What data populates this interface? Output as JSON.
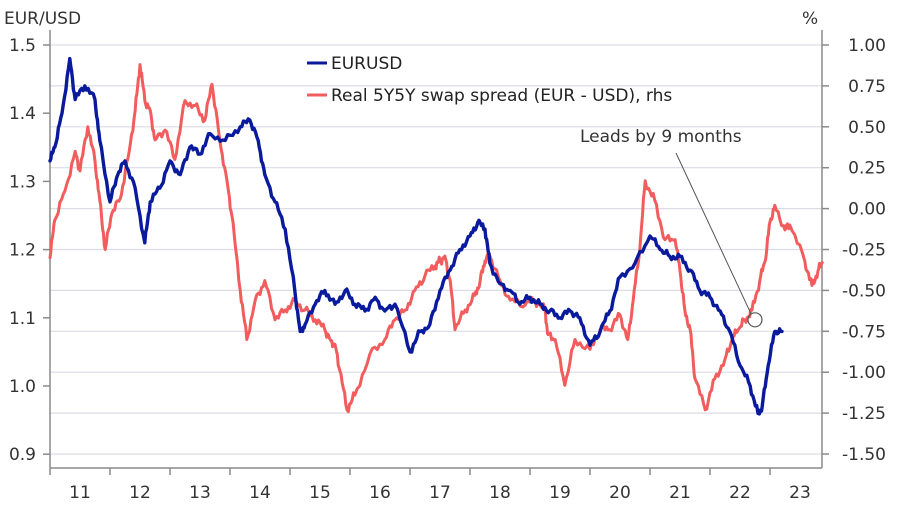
{
  "chart_data": {
    "type": "line",
    "title": "",
    "left_axis": {
      "label": "EUR/USD",
      "ylim": [
        0.88,
        1.5
      ],
      "ticks": [
        1.5,
        1.4,
        1.3,
        1.2,
        1.1,
        1.0,
        0.9
      ],
      "tick_labels": [
        "1.5",
        "1.4",
        "1.3",
        "1.2",
        "1.1",
        "1.0",
        "0.9"
      ]
    },
    "right_axis": {
      "label": "%",
      "ylim": [
        -1.55,
        1.0
      ],
      "ticks": [
        1.0,
        0.75,
        0.5,
        0.25,
        0.0,
        -0.25,
        -0.5,
        -0.75,
        -1.0,
        -1.25,
        -1.5
      ],
      "tick_labels": [
        "1.00",
        "0.75",
        "0.50",
        "0.25",
        "0.00",
        "-0.25",
        "-0.50",
        "-0.75",
        "-1.00",
        "-1.25",
        "-1.50"
      ]
    },
    "x_axis": {
      "xlim": [
        2011,
        2023.87
      ],
      "ticks": [
        2011,
        2012,
        2013,
        2014,
        2015,
        2016,
        2017,
        2018,
        2019,
        2020,
        2021,
        2022,
        2023,
        2024
      ],
      "tick_labels": [
        "11",
        "12",
        "13",
        "14",
        "15",
        "16",
        "17",
        "18",
        "19",
        "20",
        "21",
        "22",
        "23"
      ]
    },
    "grid": "horizontal",
    "legend_position": "top-center",
    "series": [
      {
        "name": "EURUSD",
        "axis": "left",
        "color": "#0a1a9c",
        "x": [
          2011.0,
          2011.08,
          2011.2,
          2011.33,
          2011.42,
          2011.58,
          2011.75,
          2011.83,
          2012.0,
          2012.13,
          2012.25,
          2012.42,
          2012.58,
          2012.67,
          2012.83,
          2013.0,
          2013.17,
          2013.33,
          2013.5,
          2013.67,
          2013.92,
          2014.17,
          2014.33,
          2014.47,
          2014.58,
          2014.75,
          2014.92,
          2015.08,
          2015.17,
          2015.25,
          2015.42,
          2015.58,
          2015.75,
          2015.92,
          2016.08,
          2016.25,
          2016.42,
          2016.58,
          2016.75,
          2017.0,
          2017.17,
          2017.33,
          2017.5,
          2017.67,
          2017.83,
          2018.0,
          2018.13,
          2018.25,
          2018.33,
          2018.5,
          2018.67,
          2018.83,
          2019.0,
          2019.17,
          2019.33,
          2019.5,
          2019.67,
          2019.83,
          2020.0,
          2020.17,
          2020.33,
          2020.5,
          2020.75,
          2021.0,
          2021.17,
          2021.33,
          2021.5,
          2021.67,
          2021.83,
          2022.0,
          2022.17,
          2022.33,
          2022.5,
          2022.67,
          2022.8,
          2022.87,
          2022.97,
          2023.08,
          2023.2
        ],
        "values": [
          1.33,
          1.35,
          1.4,
          1.48,
          1.42,
          1.44,
          1.42,
          1.36,
          1.27,
          1.31,
          1.33,
          1.29,
          1.21,
          1.27,
          1.29,
          1.33,
          1.31,
          1.35,
          1.34,
          1.37,
          1.36,
          1.38,
          1.39,
          1.36,
          1.31,
          1.27,
          1.23,
          1.14,
          1.08,
          1.09,
          1.12,
          1.14,
          1.12,
          1.14,
          1.12,
          1.11,
          1.13,
          1.11,
          1.12,
          1.05,
          1.08,
          1.09,
          1.14,
          1.17,
          1.2,
          1.22,
          1.24,
          1.23,
          1.18,
          1.15,
          1.14,
          1.12,
          1.13,
          1.12,
          1.11,
          1.1,
          1.11,
          1.1,
          1.06,
          1.08,
          1.11,
          1.16,
          1.18,
          1.22,
          1.2,
          1.19,
          1.19,
          1.17,
          1.14,
          1.13,
          1.11,
          1.08,
          1.03,
          1.0,
          0.96,
          0.97,
          1.03,
          1.08,
          1.08
        ]
      },
      {
        "name": "Real 5Y5Y swap spread (EUR - USD), rhs",
        "axis": "right",
        "color": "#f25c5c",
        "x": [
          2011.0,
          2011.08,
          2011.25,
          2011.42,
          2011.5,
          2011.63,
          2011.75,
          2011.83,
          2011.92,
          2012.03,
          2012.17,
          2012.3,
          2012.42,
          2012.5,
          2012.58,
          2012.67,
          2012.75,
          2012.92,
          2013.08,
          2013.25,
          2013.42,
          2013.58,
          2013.7,
          2013.83,
          2013.95,
          2014.03,
          2014.17,
          2014.28,
          2014.42,
          2014.58,
          2014.75,
          2014.92,
          2015.08,
          2015.25,
          2015.42,
          2015.58,
          2015.67,
          2015.75,
          2015.83,
          2015.95,
          2016.08,
          2016.33,
          2016.58,
          2016.75,
          2016.92,
          2017.08,
          2017.25,
          2017.42,
          2017.5,
          2017.58,
          2017.67,
          2017.75,
          2017.92,
          2018.08,
          2018.17,
          2018.25,
          2018.33,
          2018.5,
          2018.67,
          2018.92,
          2019.08,
          2019.25,
          2019.3,
          2019.42,
          2019.58,
          2019.75,
          2020.0,
          2020.17,
          2020.33,
          2020.5,
          2020.63,
          2020.72,
          2020.83,
          2020.92,
          2021.08,
          2021.25,
          2021.42,
          2021.5,
          2021.58,
          2021.67,
          2021.75,
          2021.92,
          2022.08,
          2022.25,
          2022.37,
          2022.47,
          2022.58,
          2022.7,
          2022.83,
          2022.92,
          2023.0,
          2023.08,
          2023.25,
          2023.33,
          2023.58,
          2023.7,
          2023.8,
          2023.87
        ],
        "values": [
          -0.3,
          -0.07,
          0.11,
          0.35,
          0.23,
          0.5,
          0.29,
          0.05,
          -0.25,
          -0.03,
          0.06,
          0.31,
          0.6,
          0.88,
          0.66,
          0.6,
          0.42,
          0.48,
          0.3,
          0.66,
          0.63,
          0.54,
          0.76,
          0.42,
          0.17,
          -0.04,
          -0.5,
          -0.8,
          -0.56,
          -0.44,
          -0.68,
          -0.62,
          -0.56,
          -0.62,
          -0.68,
          -0.74,
          -0.8,
          -0.83,
          -0.99,
          -1.23,
          -1.14,
          -0.89,
          -0.8,
          -0.68,
          -0.62,
          -0.5,
          -0.41,
          -0.35,
          -0.32,
          -0.29,
          -0.44,
          -0.74,
          -0.62,
          -0.53,
          -0.44,
          -0.32,
          -0.29,
          -0.44,
          -0.56,
          -0.59,
          -0.56,
          -0.62,
          -0.77,
          -0.8,
          -1.08,
          -0.8,
          -0.86,
          -0.74,
          -0.74,
          -0.65,
          -0.8,
          -0.56,
          -0.25,
          0.17,
          0.05,
          -0.19,
          -0.19,
          -0.38,
          -0.62,
          -0.74,
          -1.04,
          -1.23,
          -1.04,
          -0.92,
          -0.8,
          -0.74,
          -0.68,
          -0.62,
          -0.44,
          -0.32,
          -0.08,
          0.02,
          -0.13,
          -0.1,
          -0.32,
          -0.47,
          -0.38,
          -0.33
        ]
      }
    ],
    "annotations": [
      {
        "text": "Leads by 9 months",
        "target_x": 2022.75,
        "target_value": -0.68,
        "target_axis": "right"
      }
    ]
  },
  "legend": {
    "items": [
      {
        "label": "EURUSD",
        "color": "#0a1a9c"
      },
      {
        "label": "Real 5Y5Y swap spread (EUR - USD), rhs",
        "color": "#f25c5c"
      }
    ]
  },
  "annotation": {
    "text": "Leads by 9 months"
  },
  "axis_titles": {
    "left": "EUR/USD",
    "right": "%"
  },
  "colors": {
    "grid": "#dcdce6",
    "axis": "#8a8a8a",
    "text": "#333333"
  }
}
